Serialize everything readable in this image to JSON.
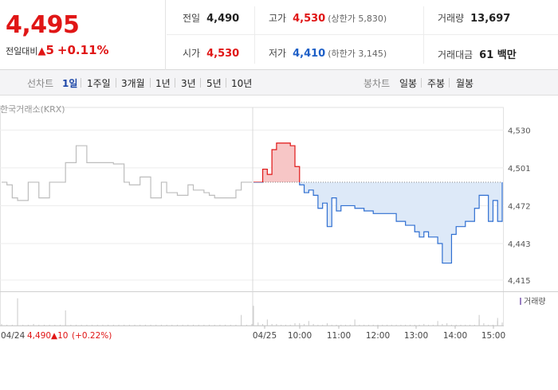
{
  "quote": {
    "price": "4,495",
    "change_label": "전일대비",
    "change_symbol": "▲",
    "change_value": "5",
    "change_pct": "+0.11%"
  },
  "stats": {
    "prev_close_label": "전일",
    "prev_close": "4,490",
    "high_label": "고가",
    "high": "4,530",
    "upper_limit": "(상한가 5,830)",
    "volume_label": "거래량",
    "volume": "13,697",
    "open_label": "시가",
    "open": "4,530",
    "low_label": "저가",
    "low": "4,410",
    "lower_limit": "(하한가 3,145)",
    "value_label": "거래대금",
    "value": "61 백만"
  },
  "colors": {
    "up": "#e01616",
    "down": "#1d5fc7",
    "active_tab": "#1d47a8"
  },
  "tabs": {
    "line_group": "선차트",
    "line_items": [
      "1일",
      "1주일",
      "3개월",
      "1년",
      "3년",
      "5년",
      "10년"
    ],
    "active": "1일",
    "candle_group": "봉차트",
    "candle_items": [
      "일봉",
      "주봉",
      "월봉"
    ]
  },
  "chart_data": {
    "type": "line",
    "source_label": "한국거래소(KRX)",
    "reference_price": 4490,
    "y_ticks": [
      4530,
      4501,
      4472,
      4443,
      4415
    ],
    "y_tick_labels": [
      "4,530",
      "4,501",
      "4,472",
      "4,443",
      "4,415"
    ],
    "ylim": [
      4407,
      4540
    ],
    "x_tick_labels": [
      "04/25",
      "10:00",
      "11:00",
      "12:00",
      "13:00",
      "14:00",
      "15:00"
    ],
    "prev_day": {
      "date": "04/24",
      "close": "4,490",
      "change": "▲10",
      "change_pct": "(+0.22%)",
      "values": [
        4490,
        4488,
        4478,
        4476,
        4476,
        4490,
        4490,
        4478,
        4478,
        4490,
        4490,
        4490,
        4505,
        4505,
        4518,
        4518,
        4505,
        4505,
        4505,
        4505,
        4505,
        4504,
        4504,
        4490,
        4488,
        4488,
        4494,
        4494,
        4478,
        4478,
        4490,
        4482,
        4482,
        4480,
        4480,
        4488,
        4484,
        4484,
        4482,
        4480,
        4478,
        4478,
        4478,
        4478,
        4484,
        4490,
        4490,
        4490
      ]
    },
    "today": {
      "values": [
        4490,
        4490,
        4500,
        4496,
        4515,
        4520,
        4520,
        4520,
        4518,
        4502,
        4488,
        4482,
        4484,
        4480,
        4470,
        4474,
        4456,
        4478,
        4468,
        4472,
        4472,
        4472,
        4470,
        4470,
        4468,
        4468,
        4466,
        4466,
        4466,
        4466,
        4466,
        4460,
        4460,
        4457,
        4457,
        4452,
        4448,
        4452,
        4448,
        4448,
        4443,
        4428,
        4428,
        4450,
        4456,
        4456,
        4460,
        4460,
        4470,
        4480,
        4480,
        4460,
        4476,
        4460,
        4490
      ]
    },
    "volume_legend": "거래량",
    "volume": {
      "prev_day": [
        2,
        1,
        1,
        1,
        1,
        1,
        2,
        1,
        1,
        1,
        1,
        1,
        1,
        1,
        1,
        1,
        1,
        1,
        1,
        1,
        1,
        1,
        1,
        1,
        1,
        1,
        1,
        1,
        1,
        1,
        1,
        1,
        1,
        1,
        1,
        1,
        1,
        1,
        1,
        1,
        1,
        1,
        1,
        1,
        1,
        1,
        1,
        2
      ],
      "today": [
        18,
        4,
        2,
        8,
        2,
        2,
        1,
        1,
        1,
        3,
        3,
        2,
        6,
        2,
        1,
        1,
        3,
        1,
        1,
        1,
        1,
        1,
        1,
        1,
        1,
        1,
        1,
        1,
        1,
        1,
        1,
        1,
        1,
        1,
        1,
        1,
        1,
        2,
        1,
        1,
        1,
        2,
        3,
        1,
        1,
        1,
        1,
        1,
        1,
        8,
        3,
        1,
        1,
        6,
        4
      ],
      "prev_day_spikes": [
        [
          3,
          36
        ],
        [
          12,
          20
        ],
        [
          45,
          14
        ]
      ],
      "today_spikes": [
        [
          0,
          26
        ],
        [
          22,
          8
        ],
        [
          40,
          6
        ],
        [
          49,
          14
        ],
        [
          53,
          10
        ]
      ]
    }
  }
}
